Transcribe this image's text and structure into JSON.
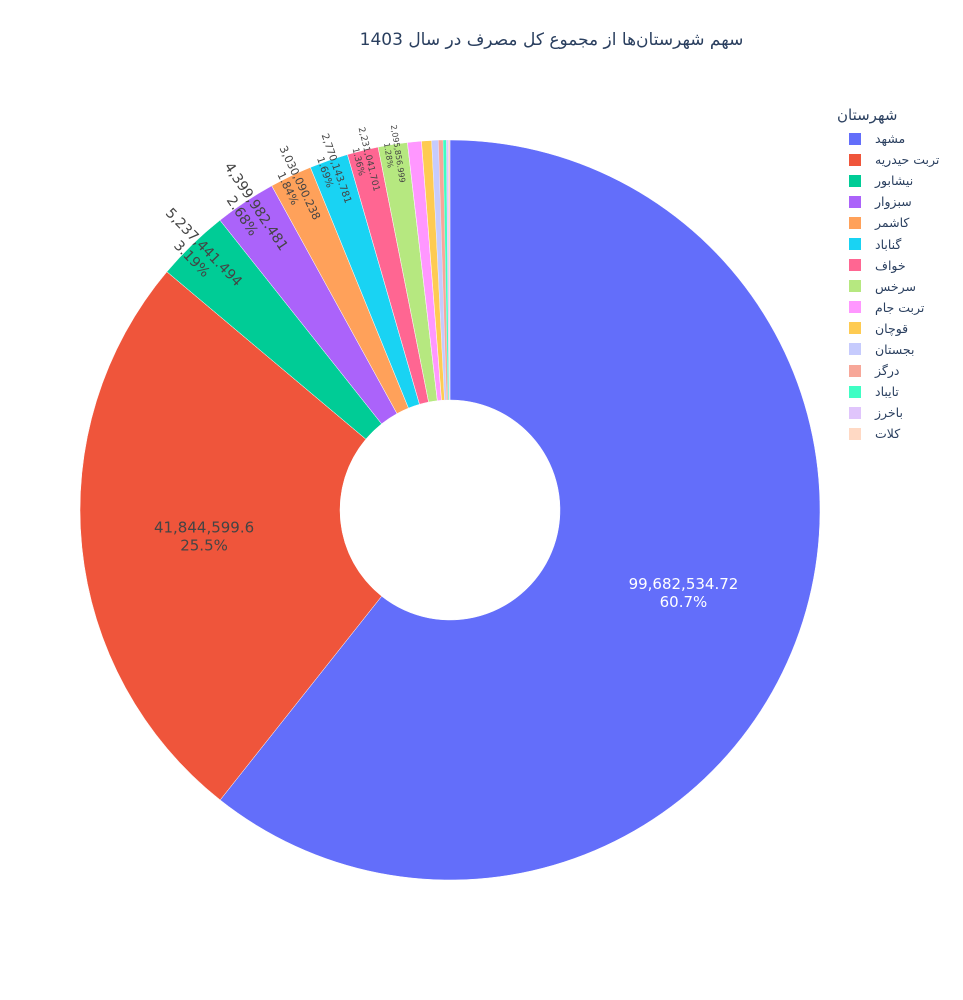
{
  "chart_data": {
    "type": "pie",
    "hole": true,
    "title": "سهم شهرستان‌ها از مجموع کل مصرف در سال 1403",
    "legend_title": "شهرستان",
    "legend_position": "top-right",
    "slices": [
      {
        "label": "مشهد",
        "value": 99682534.72,
        "value_text": "99,682,534.72",
        "percent_text": "60.7%",
        "color": "#636efa"
      },
      {
        "label": "تربت حیدریه",
        "value": 41844599.6,
        "value_text": "41,844,599.6",
        "percent_text": "25.5%",
        "color": "#ef553b"
      },
      {
        "label": "نیشابور",
        "value": 5237441.494,
        "value_text": "5,237,441.494",
        "percent_text": "3.19%",
        "color": "#00cc96"
      },
      {
        "label": "سبزوار",
        "value": 4399982.481,
        "value_text": "4,399,982.481",
        "percent_text": "2.68%",
        "color": "#ab63fa"
      },
      {
        "label": "کاشمر",
        "value": 3030090.238,
        "value_text": "3,030,090.238",
        "percent_text": "1.84%",
        "color": "#ffa15a"
      },
      {
        "label": "گناباد",
        "value": 2770143.781,
        "value_text": "2,770,143.781",
        "percent_text": "1.69%",
        "color": "#19d3f3"
      },
      {
        "label": "خواف",
        "value": 2231041.701,
        "value_text": "2,231,041.701",
        "percent_text": "1.36%",
        "color": "#ff6692"
      },
      {
        "label": "سرخس",
        "value": 2095856.999,
        "value_text": "2,095,856.999",
        "percent_text": "1.28%",
        "color": "#b6e880"
      },
      {
        "label": "تربت جام",
        "value": 1000000,
        "value_text": "",
        "percent_text": "",
        "color": "#ff97ff"
      },
      {
        "label": "قوچان",
        "value": 720000,
        "value_text": "",
        "percent_text": "",
        "color": "#fecb52"
      },
      {
        "label": "بجستان",
        "value": 480000,
        "value_text": "",
        "percent_text": "",
        "color": "#c6cbfd"
      },
      {
        "label": "درگز",
        "value": 330000,
        "value_text": "",
        "percent_text": "",
        "color": "#f7a799"
      },
      {
        "label": "تایباد",
        "value": 230000,
        "value_text": "",
        "percent_text": "",
        "color": "#3ffec4"
      },
      {
        "label": "باخرز",
        "value": 160000,
        "value_text": "",
        "percent_text": "",
        "color": "#e0c5fc"
      },
      {
        "label": "کلات",
        "value": 100000,
        "value_text": "",
        "percent_text": "",
        "color": "#ffd9c4"
      }
    ]
  }
}
